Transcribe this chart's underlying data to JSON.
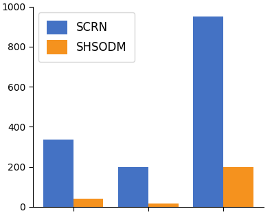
{
  "groups": 3,
  "scrn_values": [
    335,
    200,
    950
  ],
  "shsodm_values": [
    40,
    15,
    200
  ],
  "scrn_color": "#4472c4",
  "shsodm_color": "#f5921e",
  "legend_labels": [
    "SCRN",
    "SHSODM"
  ],
  "ylim": [
    0,
    1000
  ],
  "yticks": [
    0,
    200,
    400,
    600,
    800,
    1000
  ],
  "bar_width": 0.4,
  "figsize": [
    3.96,
    3.2
  ],
  "dpi": 100,
  "legend_fontsize": 12
}
